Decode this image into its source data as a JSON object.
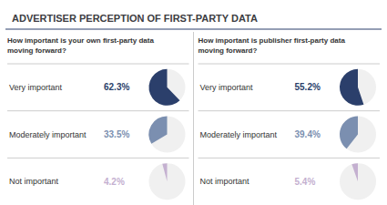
{
  "chart_data": [
    {
      "type": "pie",
      "title": "ADVERTISER PERCEPTION OF FIRST-PARTY DATA",
      "subtitle": "How important is your own first-party data\nmoving forward?",
      "categories": [
        "Very important",
        "Moderately important",
        "Not important"
      ],
      "values": [
        62.3,
        33.5,
        4.2
      ],
      "value_labels": [
        "62.3%",
        "33.5%",
        "4.2%"
      ],
      "colors": [
        "#2b3f6b",
        "#7b8fb0",
        "#c4b0d0"
      ],
      "ylim": [
        0,
        100
      ],
      "data_labels": true,
      "tick_labels": false
    },
    {
      "type": "pie",
      "subtitle": "How important is publisher first-party data\nmoving forward?",
      "categories": [
        "Very important",
        "Moderately important",
        "Not important"
      ],
      "values": [
        55.2,
        39.4,
        5.4
      ],
      "value_labels": [
        "55.2%",
        "39.4%",
        "5.4%"
      ],
      "colors": [
        "#2b3f6b",
        "#7b8fb0",
        "#c4b0d0"
      ],
      "ylim": [
        0,
        100
      ],
      "data_labels": true,
      "tick_labels": false
    }
  ]
}
